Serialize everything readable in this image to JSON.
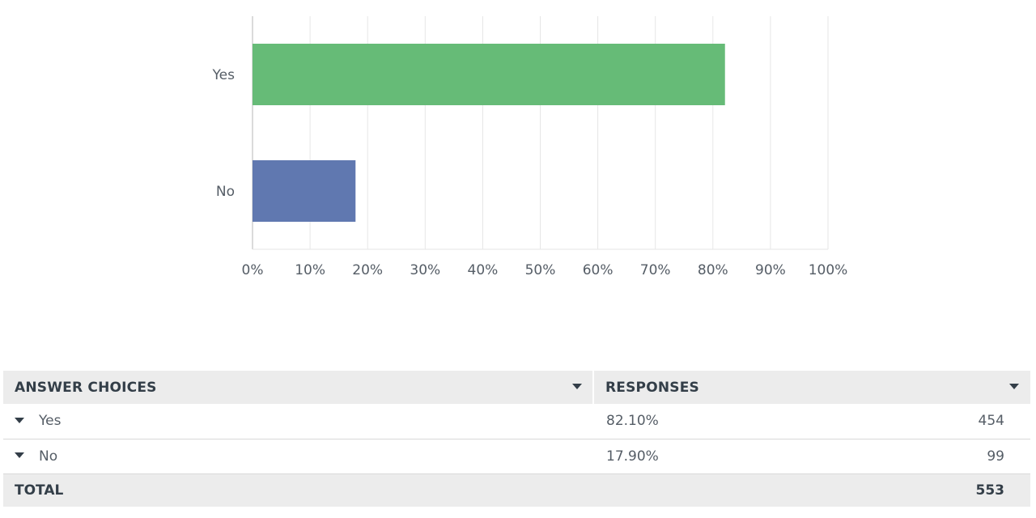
{
  "chart_data": {
    "type": "bar",
    "orientation": "horizontal",
    "categories": [
      "Yes",
      "No"
    ],
    "values": [
      82.1,
      17.9
    ],
    "colors": [
      "#66bb77",
      "#6078b0"
    ],
    "xlim": [
      0,
      100
    ],
    "x_ticks": [
      "0%",
      "10%",
      "20%",
      "30%",
      "40%",
      "50%",
      "60%",
      "70%",
      "80%",
      "90%",
      "100%"
    ],
    "grid": "vertical"
  },
  "table": {
    "headers": {
      "answer_choices": "ANSWER CHOICES",
      "responses": "RESPONSES"
    },
    "rows": [
      {
        "choice": "Yes",
        "percent": "82.10%",
        "count": "454"
      },
      {
        "choice": "No",
        "percent": "17.90%",
        "count": "99"
      }
    ],
    "total": {
      "label": "TOTAL",
      "value": "553"
    }
  }
}
